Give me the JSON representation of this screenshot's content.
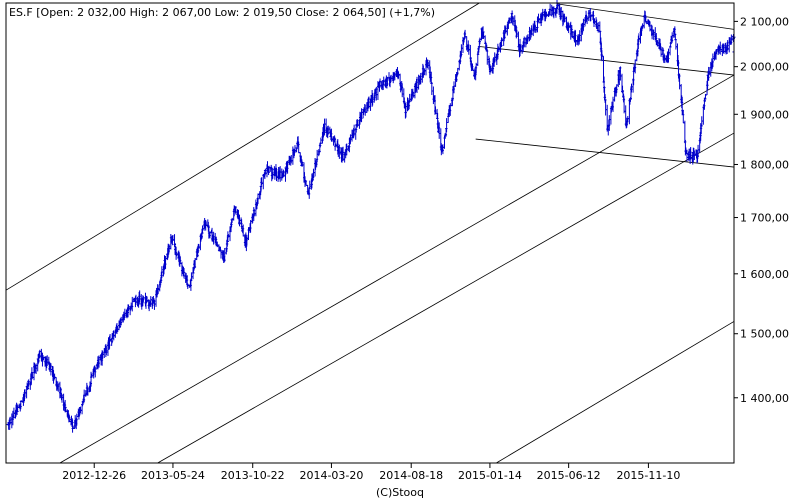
{
  "header": {
    "title": "ES.F [Open: 2 032,00  High: 2 067,00  Low: 2 019,50  Close: 2 064,50] (+1,7%)"
  },
  "footer": {
    "credit": "(C)Stooq"
  },
  "colors": {
    "bars": "#0000cc",
    "channel_lines": "#000000",
    "background": "#ffffff"
  },
  "chart_data": {
    "type": "ohlc",
    "title": "ES.F [Open: 2 032,00  High: 2 067,00  Low: 2 019,50  Close: 2 064,50] (+1,7%)",
    "xlabel": "",
    "ylabel": "",
    "ylim": [
      1305,
      2142
    ],
    "y_scale": "log",
    "grid": false,
    "legend": "none",
    "x_tick_labels": [
      "2012-12-26",
      "2013-05-24",
      "2013-10-22",
      "2014-03-20",
      "2014-08-18",
      "2015-01-14",
      "2015-06-12",
      "2015-11-10"
    ],
    "y_ticks": [
      1400,
      1500,
      1600,
      1700,
      1800,
      1900,
      2000,
      2100
    ],
    "y_tick_labels": [
      "1 400,00",
      "1 500,00",
      "1 600,00",
      "1 700,00",
      "1 800,00",
      "1 900,00",
      "2 000,00",
      "2 100,00"
    ],
    "x_range": [
      "2012-07-12",
      "2016-04-20"
    ],
    "last_bar": {
      "open": 2032.0,
      "high": 2067.0,
      "low": 2019.5,
      "close": 2064.5
    },
    "anchors": [
      [
        "2012-07-16",
        1358
      ],
      [
        "2012-08-10",
        1392
      ],
      [
        "2012-09-14",
        1466
      ],
      [
        "2012-10-05",
        1445
      ],
      [
        "2012-10-24",
        1405
      ],
      [
        "2012-11-16",
        1354
      ],
      [
        "2012-12-14",
        1415
      ],
      [
        "2013-01-04",
        1456
      ],
      [
        "2013-02-15",
        1518
      ],
      [
        "2013-03-15",
        1558
      ],
      [
        "2013-04-18",
        1548
      ],
      [
        "2013-05-21",
        1662
      ],
      [
        "2013-06-24",
        1575
      ],
      [
        "2013-07-22",
        1690
      ],
      [
        "2013-08-29",
        1630
      ],
      [
        "2013-09-18",
        1720
      ],
      [
        "2013-10-09",
        1655
      ],
      [
        "2013-11-15",
        1790
      ],
      [
        "2013-12-17",
        1778
      ],
      [
        "2014-01-15",
        1840
      ],
      [
        "2014-02-04",
        1740
      ],
      [
        "2014-03-07",
        1875
      ],
      [
        "2014-04-11",
        1815
      ],
      [
        "2014-05-12",
        1890
      ],
      [
        "2014-06-20",
        1960
      ],
      [
        "2014-07-24",
        1985
      ],
      [
        "2014-08-07",
        1910
      ],
      [
        "2014-09-18",
        2010
      ],
      [
        "2014-10-15",
        1825
      ],
      [
        "2014-11-27",
        2070
      ],
      [
        "2014-12-16",
        1975
      ],
      [
        "2014-12-29",
        2085
      ],
      [
        "2015-01-15",
        1990
      ],
      [
        "2015-02-25",
        2115
      ],
      [
        "2015-03-11",
        2040
      ],
      [
        "2015-04-24",
        2112
      ],
      [
        "2015-05-21",
        2130
      ],
      [
        "2015-06-29",
        2055
      ],
      [
        "2015-07-20",
        2125
      ],
      [
        "2015-08-10",
        2075
      ],
      [
        "2015-08-24",
        1870
      ],
      [
        "2015-09-17",
        1990
      ],
      [
        "2015-09-29",
        1875
      ],
      [
        "2015-10-22",
        2055
      ],
      [
        "2015-11-03",
        2110
      ],
      [
        "2015-12-14",
        2010
      ],
      [
        "2015-12-29",
        2085
      ],
      [
        "2016-01-20",
        1820
      ],
      [
        "2016-02-11",
        1815
      ],
      [
        "2016-03-01",
        1975
      ],
      [
        "2016-03-18",
        2040
      ],
      [
        "2016-04-08",
        2040
      ],
      [
        "2016-04-20",
        2064.5
      ]
    ],
    "trend_lines": [
      {
        "start": [
          "2012-07-12",
          1572
        ],
        "end": [
          "2014-12-25",
          2142
        ]
      },
      {
        "start": [
          "2012-10-22",
          1305
        ],
        "end": [
          "2016-04-20",
          1982
        ]
      },
      {
        "start": [
          "2013-04-25",
          1305
        ],
        "end": [
          "2016-04-20",
          1862
        ]
      },
      {
        "start": [
          "2015-01-26",
          1305
        ],
        "end": [
          "2016-04-20",
          1520
        ]
      },
      {
        "start": [
          "2015-05-21",
          2140
        ],
        "end": [
          "2016-04-20",
          2082
        ]
      },
      {
        "start": [
          "2014-12-25",
          2044
        ],
        "end": [
          "2016-04-20",
          1982
        ]
      },
      {
        "start": [
          "2014-12-18",
          1850
        ],
        "end": [
          "2016-04-20",
          1795
        ]
      }
    ]
  }
}
